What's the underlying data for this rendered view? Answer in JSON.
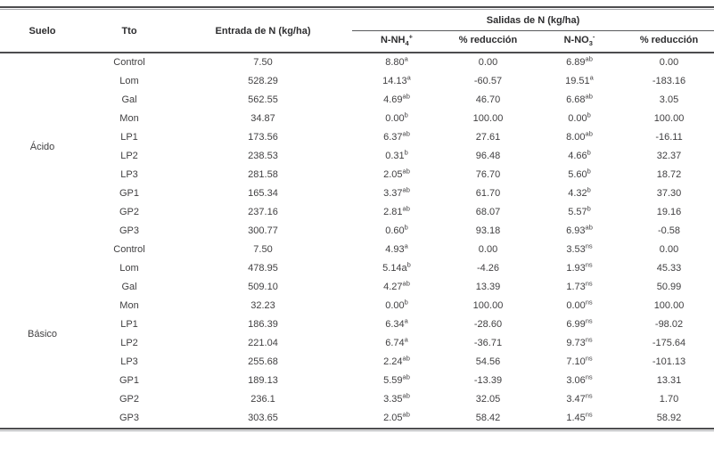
{
  "table": {
    "columns": {
      "suelo": "Suelo",
      "tto": "Tto",
      "entrada": "Entrada de N (kg/ha)",
      "salidas": "Salidas de N (kg/ha)",
      "sub": [
        {
          "base": "N-NH",
          "sub": "4",
          "sup": "+"
        },
        {
          "base": "% reducción",
          "sub": "",
          "sup": ""
        },
        {
          "base": "N-NO",
          "sub": "3",
          "sup": "-"
        },
        {
          "base": "% reducción",
          "sub": "",
          "sup": ""
        }
      ]
    },
    "groups": [
      {
        "suelo": "Ácido",
        "rows": [
          {
            "tto": "Control",
            "entrada": "7.50",
            "nh4": "8.80",
            "nh4_sup": "a",
            "red1": "0.00",
            "no3": "6.89",
            "no3_sup": "ab",
            "red2": "0.00"
          },
          {
            "tto": "Lom",
            "entrada": "528.29",
            "nh4": "14.13",
            "nh4_sup": "a",
            "red1": "-60.57",
            "no3": "19.51",
            "no3_sup": "a",
            "red2": "-183.16"
          },
          {
            "tto": "Gal",
            "entrada": "562.55",
            "nh4": "4.69",
            "nh4_sup": "ab",
            "red1": "46.70",
            "no3": "6.68",
            "no3_sup": "ab",
            "red2": "3.05"
          },
          {
            "tto": "Mon",
            "entrada": "34.87",
            "nh4": "0.00",
            "nh4_sup": "b",
            "red1": "100.00",
            "no3": "0.00",
            "no3_sup": "b",
            "red2": "100.00"
          },
          {
            "tto": "LP1",
            "entrada": "173.56",
            "nh4": "6.37",
            "nh4_sup": "ab",
            "red1": "27.61",
            "no3": "8.00",
            "no3_sup": "ab",
            "red2": "-16.11"
          },
          {
            "tto": "LP2",
            "entrada": "238.53",
            "nh4": "0.31",
            "nh4_sup": "b",
            "red1": "96.48",
            "no3": "4.66",
            "no3_sup": "b",
            "red2": "32.37"
          },
          {
            "tto": "LP3",
            "entrada": "281.58",
            "nh4": "2.05",
            "nh4_sup": "ab",
            "red1": "76.70",
            "no3": "5.60",
            "no3_sup": "b",
            "red2": "18.72"
          },
          {
            "tto": "GP1",
            "entrada": "165.34",
            "nh4": "3.37",
            "nh4_sup": "ab",
            "red1": "61.70",
            "no3": "4.32",
            "no3_sup": "b",
            "red2": "37.30"
          },
          {
            "tto": "GP2",
            "entrada": "237.16",
            "nh4": "2.81",
            "nh4_sup": "ab",
            "red1": "68.07",
            "no3": "5.57",
            "no3_sup": "b",
            "red2": "19.16"
          },
          {
            "tto": "GP3",
            "entrada": "300.77",
            "nh4": "0.60",
            "nh4_sup": "b",
            "red1": "93.18",
            "no3": "6.93",
            "no3_sup": "ab",
            "red2": "-0.58"
          }
        ]
      },
      {
        "suelo": "Básico",
        "rows": [
          {
            "tto": "Control",
            "entrada": "7.50",
            "nh4": "4.93",
            "nh4_sup": "a",
            "red1": "0.00",
            "no3": "3.53",
            "no3_sup": "ns",
            "red2": "0.00"
          },
          {
            "tto": "Lom",
            "entrada": "478.95",
            "nh4": "5.14a",
            "nh4_sup": "b",
            "red1": "-4.26",
            "no3": "1.93",
            "no3_sup": "ns",
            "red2": "45.33"
          },
          {
            "tto": "Gal",
            "entrada": "509.10",
            "nh4": "4.27",
            "nh4_sup": "ab",
            "red1": "13.39",
            "no3": "1.73",
            "no3_sup": "ns",
            "red2": "50.99"
          },
          {
            "tto": "Mon",
            "entrada": "32.23",
            "nh4": "0.00",
            "nh4_sup": "b",
            "red1": "100.00",
            "no3": "0.00",
            "no3_sup": "ns",
            "red2": "100.00"
          },
          {
            "tto": "LP1",
            "entrada": "186.39",
            "nh4": "6.34",
            "nh4_sup": "a",
            "red1": "-28.60",
            "no3": "6.99",
            "no3_sup": "ns",
            "red2": "-98.02"
          },
          {
            "tto": "LP2",
            "entrada": "221.04",
            "nh4": "6.74",
            "nh4_sup": "a",
            "red1": "-36.71",
            "no3": "9.73",
            "no3_sup": "ns",
            "red2": "-175.64"
          },
          {
            "tto": "LP3",
            "entrada": "255.68",
            "nh4": "2.24",
            "nh4_sup": "ab",
            "red1": "54.56",
            "no3": "7.10",
            "no3_sup": "ns",
            "red2": "-101.13"
          },
          {
            "tto": "GP1",
            "entrada": "189.13",
            "nh4": "5.59",
            "nh4_sup": "ab",
            "red1": "-13.39",
            "no3": "3.06",
            "no3_sup": "ns",
            "red2": "13.31"
          },
          {
            "tto": "GP2",
            "entrada": "236.1",
            "nh4": "3.35",
            "nh4_sup": "ab",
            "red1": "32.05",
            "no3": "3.47",
            "no3_sup": "ns",
            "red2": "1.70"
          },
          {
            "tto": "GP3",
            "entrada": "303.65",
            "nh4": "2.05",
            "nh4_sup": "ab",
            "red1": "58.42",
            "no3": "1.45",
            "no3_sup": "ns",
            "red2": "58.92"
          }
        ]
      }
    ]
  },
  "colors": {
    "text": "#414042",
    "heading": "#2d2d2f",
    "rule_dark": "#4d4d4f",
    "rule_light": "#a7a9ac"
  }
}
